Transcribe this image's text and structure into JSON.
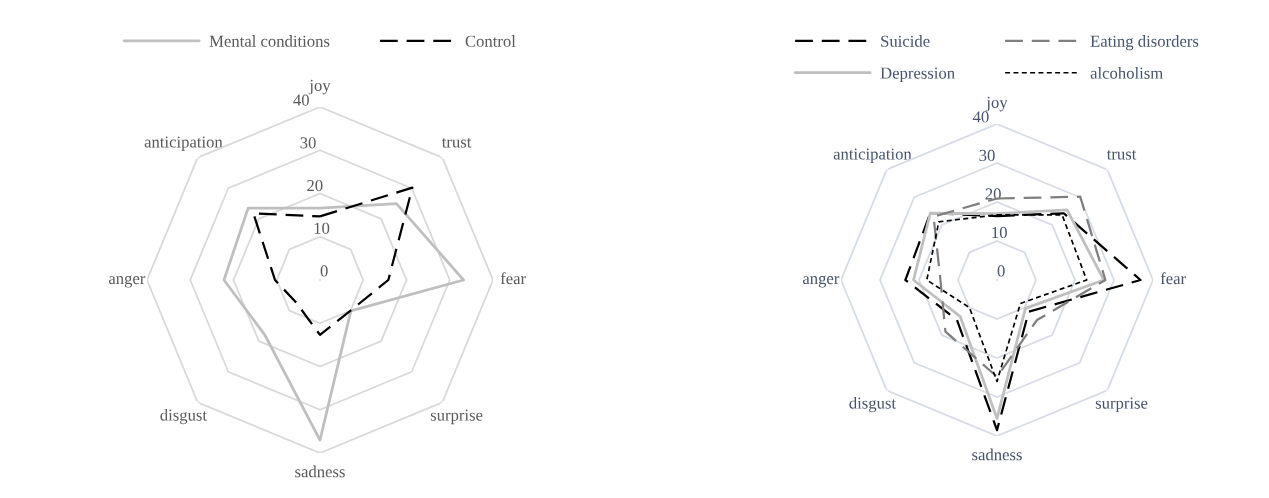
{
  "chart_data": [
    {
      "type": "radar",
      "categories": [
        "joy",
        "trust",
        "fear",
        "surprise",
        "sadness",
        "disgust",
        "anger",
        "anticipation"
      ],
      "ylim": [
        0,
        40
      ],
      "yticks": [
        0,
        10,
        20,
        30,
        40
      ],
      "legend": "top",
      "grid": true,
      "series": [
        {
          "name": "Mental conditions",
          "color": "#bfbfbf",
          "line_style": "solid",
          "values": [
            16.6,
            25,
            33.2,
            10.1,
            37,
            18,
            22.2,
            23.5
          ]
        },
        {
          "name": "Control",
          "color": "#000000",
          "line_style": "dashed",
          "values": [
            14.7,
            30.2,
            15.8,
            10,
            12.7,
            7.6,
            10.4,
            21.8
          ]
        }
      ]
    },
    {
      "type": "radar",
      "categories": [
        "joy",
        "trust",
        "fear",
        "surprise",
        "sadness",
        "disgust",
        "anger",
        "anticipation"
      ],
      "ylim": [
        0,
        40
      ],
      "yticks": [
        0,
        10,
        20,
        30,
        40
      ],
      "legend": "top",
      "grid": true,
      "series": [
        {
          "name": "Suicide",
          "color": "#000000",
          "line_style": "dashed",
          "values": [
            16.4,
            24.2,
            36.8,
            11.5,
            38.5,
            14.5,
            23.5,
            24.2
          ]
        },
        {
          "name": "Depression",
          "color": "#bfbfbf",
          "line_style": "solid",
          "values": [
            17,
            25.4,
            27.4,
            10.3,
            35.5,
            13.3,
            21.4,
            24.2
          ]
        },
        {
          "name": "Eating disorders",
          "color": "#7f7f7f",
          "line_style": "dashed",
          "values": [
            20.9,
            30.2,
            27.8,
            14.5,
            24.8,
            18.7,
            14.5,
            23
          ]
        },
        {
          "name": "alcoholism",
          "color": "#000000",
          "line_style": "dotted",
          "values": [
            16.7,
            23.6,
            23,
            8.5,
            26,
            10,
            18,
            21.1
          ]
        }
      ]
    }
  ]
}
